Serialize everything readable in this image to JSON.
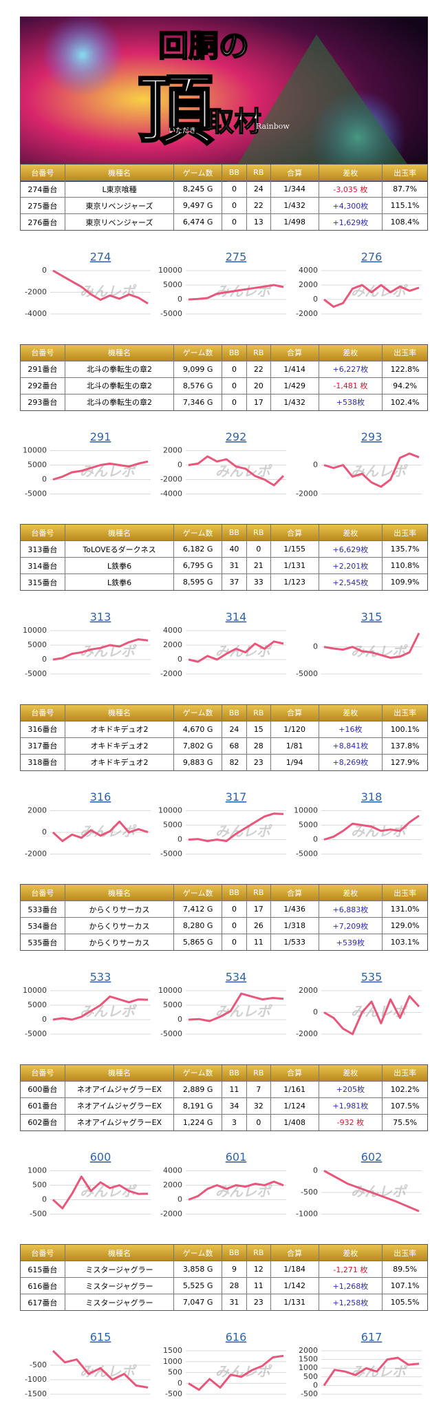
{
  "banner": {
    "title": "回胴の",
    "big": "頂",
    "sub": "取材",
    "reading": "いただき",
    "brand": "Rainbow"
  },
  "table_header": [
    "台番号",
    "機種名",
    "ゲーム数",
    "BB",
    "RB",
    "合算",
    "差枚",
    "出玉率"
  ],
  "watermark": "みんレポ",
  "tables": [
    {
      "rows": [
        [
          "274番台",
          "L東京喰種",
          "8,245 G",
          "0",
          "24",
          "1/344",
          "-3,035 枚",
          "87.7%"
        ],
        [
          "275番台",
          "東京リベンジャーズ",
          "9,497 G",
          "0",
          "22",
          "1/432",
          "+4,300枚",
          "115.1%"
        ],
        [
          "276番台",
          "東京リベンジャーズ",
          "6,474 G",
          "0",
          "13",
          "1/498",
          "+1,629枚",
          "108.4%"
        ]
      ]
    },
    {
      "rows": [
        [
          "291番台",
          "北斗の拳転生の章2",
          "9,099 G",
          "0",
          "22",
          "1/414",
          "+6,227枚",
          "122.8%"
        ],
        [
          "292番台",
          "北斗の拳転生の章2",
          "8,576 G",
          "0",
          "20",
          "1/429",
          "-1,481 枚",
          "94.2%"
        ],
        [
          "293番台",
          "北斗の拳転生の章2",
          "7,346 G",
          "0",
          "17",
          "1/432",
          "+538枚",
          "102.4%"
        ]
      ]
    },
    {
      "rows": [
        [
          "313番台",
          "ToLOVEるダークネス",
          "6,182 G",
          "40",
          "0",
          "1/155",
          "+6,629枚",
          "135.7%"
        ],
        [
          "314番台",
          "L鉄拳6",
          "6,795 G",
          "31",
          "21",
          "1/131",
          "+2,201枚",
          "110.8%"
        ],
        [
          "315番台",
          "L鉄拳6",
          "8,595 G",
          "37",
          "33",
          "1/123",
          "+2,545枚",
          "109.9%"
        ]
      ]
    },
    {
      "rows": [
        [
          "316番台",
          "オキドキデュオ2",
          "4,670 G",
          "24",
          "15",
          "1/120",
          "+16枚",
          "100.1%"
        ],
        [
          "317番台",
          "オキドキデュオ2",
          "7,802 G",
          "68",
          "28",
          "1/81",
          "+8,841枚",
          "137.8%"
        ],
        [
          "318番台",
          "オキドキデュオ2",
          "9,883 G",
          "82",
          "23",
          "1/94",
          "+8,269枚",
          "127.9%"
        ]
      ]
    },
    {
      "rows": [
        [
          "533番台",
          "からくりサーカス",
          "7,412 G",
          "0",
          "17",
          "1/436",
          "+6,883枚",
          "131.0%"
        ],
        [
          "534番台",
          "からくりサーカス",
          "8,280 G",
          "0",
          "26",
          "1/318",
          "+7,209枚",
          "129.0%"
        ],
        [
          "535番台",
          "からくりサーカス",
          "5,865 G",
          "0",
          "11",
          "1/533",
          "+539枚",
          "103.1%"
        ]
      ]
    },
    {
      "rows": [
        [
          "600番台",
          "ネオアイムジャグラーEX",
          "2,889 G",
          "11",
          "7",
          "1/161",
          "+205枚",
          "102.2%"
        ],
        [
          "601番台",
          "ネオアイムジャグラーEX",
          "8,191 G",
          "34",
          "32",
          "1/124",
          "+1,981枚",
          "107.5%"
        ],
        [
          "602番台",
          "ネオアイムジャグラーEX",
          "1,224 G",
          "3",
          "0",
          "1/408",
          "-932 枚",
          "75.5%"
        ]
      ]
    },
    {
      "rows": [
        [
          "615番台",
          "ミスタージャグラー",
          "3,858 G",
          "9",
          "12",
          "1/184",
          "-1,271 枚",
          "89.5%"
        ],
        [
          "616番台",
          "ミスタージャグラー",
          "5,525 G",
          "28",
          "11",
          "1/142",
          "+1,268枚",
          "107.1%"
        ],
        [
          "617番台",
          "ミスタージャグラー",
          "7,047 G",
          "31",
          "23",
          "1/131",
          "+1,258枚",
          "105.5%"
        ]
      ]
    }
  ],
  "chart_data": [
    {
      "type": "line",
      "title": "274",
      "color": "#e8577a",
      "grid": true,
      "ylim": [
        -4000,
        0
      ],
      "yticks": [
        0,
        -2000,
        -4000
      ],
      "values": [
        0,
        -500,
        -1000,
        -1500,
        -2200,
        -2700,
        -2300,
        -2600,
        -2200,
        -2500,
        -3035
      ]
    },
    {
      "type": "line",
      "title": "275",
      "color": "#e8577a",
      "grid": true,
      "ylim": [
        -5000,
        10000
      ],
      "yticks": [
        10000,
        5000,
        0,
        -5000
      ],
      "values": [
        0,
        200,
        500,
        2000,
        2500,
        3000,
        3500,
        4000,
        4500,
        5000,
        4300
      ]
    },
    {
      "type": "line",
      "title": "276",
      "color": "#e8577a",
      "grid": true,
      "ylim": [
        -2000,
        4000
      ],
      "yticks": [
        4000,
        2000,
        0,
        -2000
      ],
      "values": [
        0,
        -1000,
        -500,
        1500,
        2000,
        1000,
        2000,
        1000,
        1800,
        1200,
        1629
      ]
    },
    {
      "type": "line",
      "title": "291",
      "color": "#e8577a",
      "grid": true,
      "ylim": [
        -5000,
        10000
      ],
      "yticks": [
        10000,
        5000,
        0,
        -5000
      ],
      "values": [
        0,
        1000,
        2500,
        3000,
        4000,
        5000,
        5500,
        5000,
        4500,
        5500,
        6227
      ]
    },
    {
      "type": "line",
      "title": "292",
      "color": "#e8577a",
      "grid": true,
      "ylim": [
        -4000,
        2000
      ],
      "yticks": [
        2000,
        0,
        -2000,
        -4000
      ],
      "values": [
        0,
        200,
        1200,
        500,
        800,
        -200,
        -500,
        -1500,
        -2000,
        -2800,
        -1481
      ]
    },
    {
      "type": "line",
      "title": "293",
      "color": "#e8577a",
      "grid": true,
      "ylim": [
        -2000,
        1000
      ],
      "yticks": [
        0,
        -2000
      ],
      "values": [
        0,
        -200,
        0,
        -800,
        -600,
        -1200,
        -1500,
        -1000,
        500,
        800,
        538
      ]
    },
    {
      "type": "line",
      "title": "313",
      "color": "#e8577a",
      "grid": true,
      "ylim": [
        -5000,
        10000
      ],
      "yticks": [
        10000,
        5000,
        0,
        -5000
      ],
      "values": [
        0,
        500,
        2000,
        2500,
        3500,
        4000,
        5000,
        4500,
        6000,
        7000,
        6629
      ]
    },
    {
      "type": "line",
      "title": "314",
      "color": "#e8577a",
      "grid": true,
      "ylim": [
        -2000,
        4000
      ],
      "yticks": [
        4000,
        2000,
        0,
        -2000
      ],
      "values": [
        0,
        -300,
        500,
        0,
        800,
        1500,
        1000,
        2200,
        1500,
        2500,
        2201
      ]
    },
    {
      "type": "line",
      "title": "315",
      "color": "#e8577a",
      "grid": true,
      "ylim": [
        -5000,
        3000
      ],
      "yticks": [
        0,
        -5000
      ],
      "values": [
        0,
        -300,
        -500,
        0,
        -800,
        -1000,
        -1500,
        -2000,
        -1800,
        -1000,
        2545
      ]
    },
    {
      "type": "line",
      "title": "316",
      "color": "#e8577a",
      "grid": true,
      "ylim": [
        -2000,
        2000
      ],
      "yticks": [
        2000,
        0,
        -2000
      ],
      "values": [
        0,
        -800,
        -200,
        -500,
        200,
        -300,
        100,
        1000,
        0,
        300,
        16
      ]
    },
    {
      "type": "line",
      "title": "317",
      "color": "#e8577a",
      "grid": true,
      "ylim": [
        -5000,
        10000
      ],
      "yticks": [
        10000,
        5000,
        0,
        -5000
      ],
      "values": [
        0,
        200,
        -500,
        0,
        -500,
        2000,
        4000,
        6000,
        8000,
        9000,
        8841
      ]
    },
    {
      "type": "line",
      "title": "318",
      "color": "#e8577a",
      "grid": true,
      "ylim": [
        -5000,
        10000
      ],
      "yticks": [
        10000,
        5000,
        0,
        -5000
      ],
      "values": [
        0,
        1000,
        3000,
        5500,
        5000,
        4500,
        3000,
        3500,
        3000,
        6000,
        8269
      ]
    },
    {
      "type": "line",
      "title": "533",
      "color": "#e8577a",
      "grid": true,
      "ylim": [
        -5000,
        10000
      ],
      "yticks": [
        10000,
        5000,
        0,
        -5000
      ],
      "values": [
        0,
        500,
        0,
        1000,
        3000,
        5000,
        8000,
        7000,
        6000,
        7000,
        6883
      ]
    },
    {
      "type": "line",
      "title": "534",
      "color": "#e8577a",
      "grid": true,
      "ylim": [
        -5000,
        10000
      ],
      "yticks": [
        10000,
        5000,
        0,
        -5000
      ],
      "values": [
        0,
        200,
        -500,
        1000,
        3000,
        9000,
        8000,
        7000,
        7500,
        7209
      ]
    },
    {
      "type": "line",
      "title": "535",
      "color": "#e8577a",
      "grid": true,
      "ylim": [
        -2000,
        2000
      ],
      "yticks": [
        2000,
        0,
        -2000
      ],
      "values": [
        0,
        -500,
        -1500,
        -2000,
        0,
        1000,
        -1000,
        1200,
        -500,
        1500,
        539
      ]
    },
    {
      "type": "line",
      "title": "600",
      "color": "#e8577a",
      "grid": true,
      "ylim": [
        -500,
        1000
      ],
      "yticks": [
        1000,
        500,
        0,
        -500
      ],
      "values": [
        0,
        -300,
        200,
        800,
        300,
        600,
        400,
        500,
        300,
        200,
        205
      ]
    },
    {
      "type": "line",
      "title": "601",
      "color": "#e8577a",
      "grid": true,
      "ylim": [
        -2000,
        4000
      ],
      "yticks": [
        4000,
        2000,
        0,
        -2000
      ],
      "values": [
        0,
        500,
        1500,
        2000,
        1500,
        2000,
        1800,
        2200,
        2000,
        2500,
        1981
      ]
    },
    {
      "type": "line",
      "title": "602",
      "color": "#e8577a",
      "grid": true,
      "ylim": [
        -1000,
        0
      ],
      "yticks": [
        0,
        -500,
        -1000
      ],
      "values": [
        0,
        -300,
        -500,
        -700,
        -932
      ]
    },
    {
      "type": "line",
      "title": "615",
      "color": "#e8577a",
      "grid": true,
      "ylim": [
        -1500,
        0
      ],
      "yticks": [
        -500,
        -1000,
        -1500
      ],
      "values": [
        0,
        -400,
        -300,
        -800,
        -600,
        -1000,
        -800,
        -1200,
        -1271
      ]
    },
    {
      "type": "line",
      "title": "616",
      "color": "#e8577a",
      "grid": true,
      "ylim": [
        -500,
        1500
      ],
      "yticks": [
        1500,
        1000,
        500,
        0,
        -500
      ],
      "values": [
        0,
        -300,
        200,
        -200,
        400,
        300,
        600,
        800,
        1200,
        1268
      ]
    },
    {
      "type": "line",
      "title": "617",
      "color": "#e8577a",
      "grid": true,
      "ylim": [
        -500,
        2000
      ],
      "yticks": [
        2000,
        1500,
        1000,
        500,
        0,
        -500
      ],
      "values": [
        0,
        900,
        800,
        600,
        1000,
        800,
        1500,
        1600,
        1200,
        1258
      ]
    }
  ]
}
